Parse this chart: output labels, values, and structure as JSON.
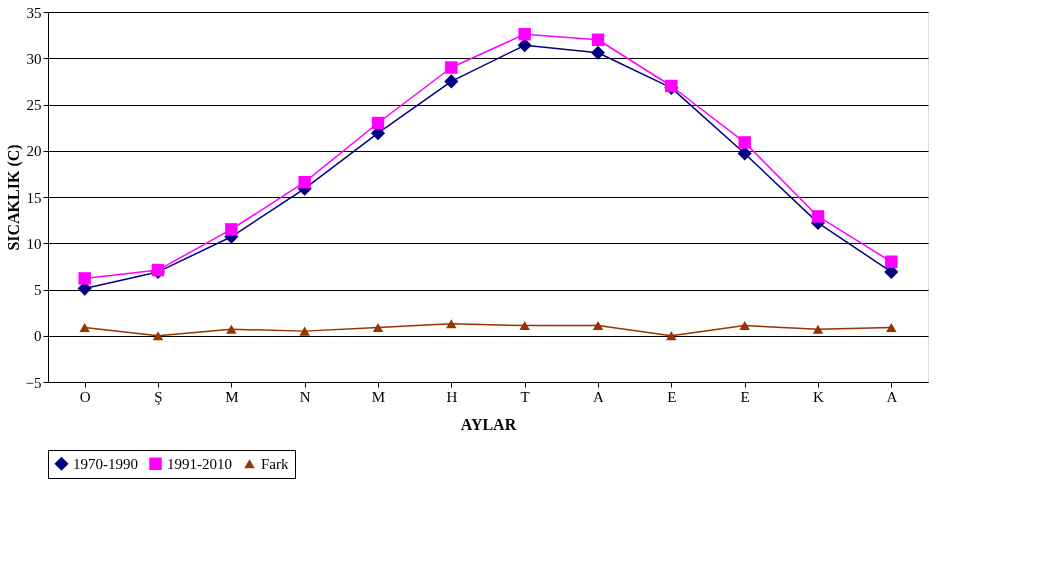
{
  "chart_data": {
    "type": "line",
    "xlabel": "AYLAR",
    "ylabel": "SICAKLIK (C)",
    "categories": [
      "O",
      "Ş",
      "M",
      "N",
      "M",
      "H",
      "T",
      "A",
      "E",
      "E",
      "K",
      "A"
    ],
    "series": [
      {
        "name": "1970-1990",
        "color": "#000080",
        "marker": "diamond",
        "values": [
          5.1,
          6.9,
          10.7,
          15.9,
          21.9,
          27.5,
          31.4,
          30.6,
          26.8,
          19.7,
          12.2,
          6.9
        ]
      },
      {
        "name": "1991-2010",
        "color": "#ff00ff",
        "marker": "square",
        "values": [
          6.2,
          7.1,
          11.5,
          16.6,
          23.0,
          29.0,
          32.6,
          32.0,
          27.0,
          20.9,
          12.9,
          8.0
        ]
      },
      {
        "name": "Fark",
        "color": "#993300",
        "marker": "triangle",
        "values": [
          0.9,
          0.0,
          0.7,
          0.5,
          0.9,
          1.3,
          1.1,
          1.1,
          0.0,
          1.1,
          0.7,
          0.9
        ]
      }
    ],
    "ylim": [
      -5,
      35
    ],
    "yticks": [
      -5,
      0,
      5,
      10,
      15,
      20,
      25,
      30,
      35
    ],
    "grid": "y",
    "legend": "bottom",
    "line_style": "solid"
  }
}
